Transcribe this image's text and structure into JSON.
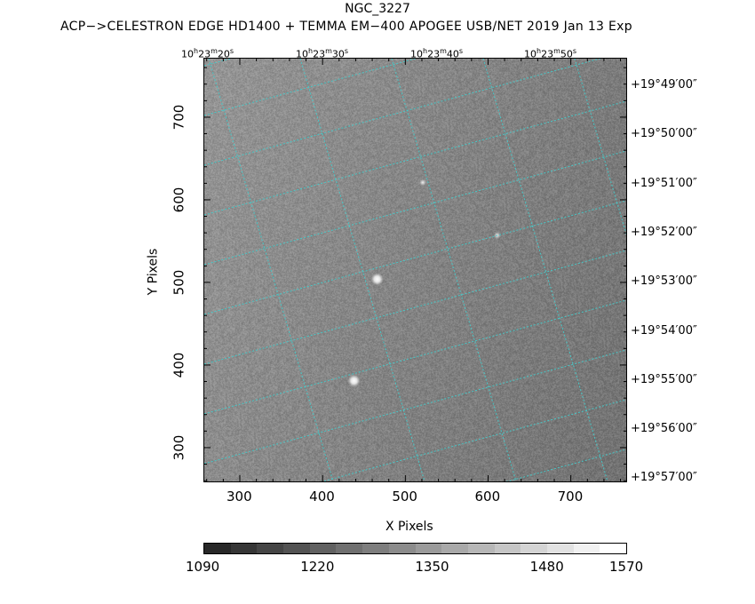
{
  "header": {
    "object_name": "NGC_3227",
    "subtitle": "ACP−>CELESTRON EDGE HD1400 + TEMMA EM−400 APOGEE USB/NET   2019 Jan 13    Exp"
  },
  "axes": {
    "xlabel": "X Pixels",
    "ylabel": "Y Pixels",
    "x_range": [
      256,
      768
    ],
    "y_range": [
      258,
      772
    ],
    "x_ticks": [
      "300",
      "400",
      "500",
      "600",
      "700"
    ],
    "x_tick_values": [
      300,
      400,
      500,
      600,
      700
    ],
    "y_ticks": [
      "300",
      "400",
      "500",
      "600",
      "700"
    ],
    "y_tick_values": [
      300,
      400,
      500,
      600,
      700
    ],
    "ra_ticks": [
      {
        "h": "10",
        "m": "23",
        "s": "20"
      },
      {
        "h": "10",
        "m": "23",
        "s": "30"
      },
      {
        "h": "10",
        "m": "23",
        "s": "40"
      },
      {
        "h": "10",
        "m": "23",
        "s": "50"
      }
    ],
    "dec_ticks": [
      "+19°49′00″",
      "+19°50′00″",
      "+19°51′00″",
      "+19°52′00″",
      "+19°53′00″",
      "+19°54′00″",
      "+19°55′00″",
      "+19°56′00″",
      "+19°57′00″"
    ]
  },
  "colorbar": {
    "ticks": [
      "1090",
      "1220",
      "1350",
      "1480",
      "1570"
    ],
    "tick_values": [
      1090,
      1220,
      1350,
      1480,
      1570
    ],
    "range": [
      1090,
      1570
    ],
    "levels": 16
  },
  "sources": [
    {
      "x": 465,
      "y": 505,
      "brightness": "bright"
    },
    {
      "x": 437,
      "y": 382,
      "brightness": "bright"
    },
    {
      "x": 520,
      "y": 622,
      "brightness": "faint"
    },
    {
      "x": 610,
      "y": 558,
      "brightness": "faint"
    }
  ],
  "colors": {
    "grid": "#46c8c8",
    "background_sky": "#8a8a8a",
    "frame": "#000000"
  }
}
